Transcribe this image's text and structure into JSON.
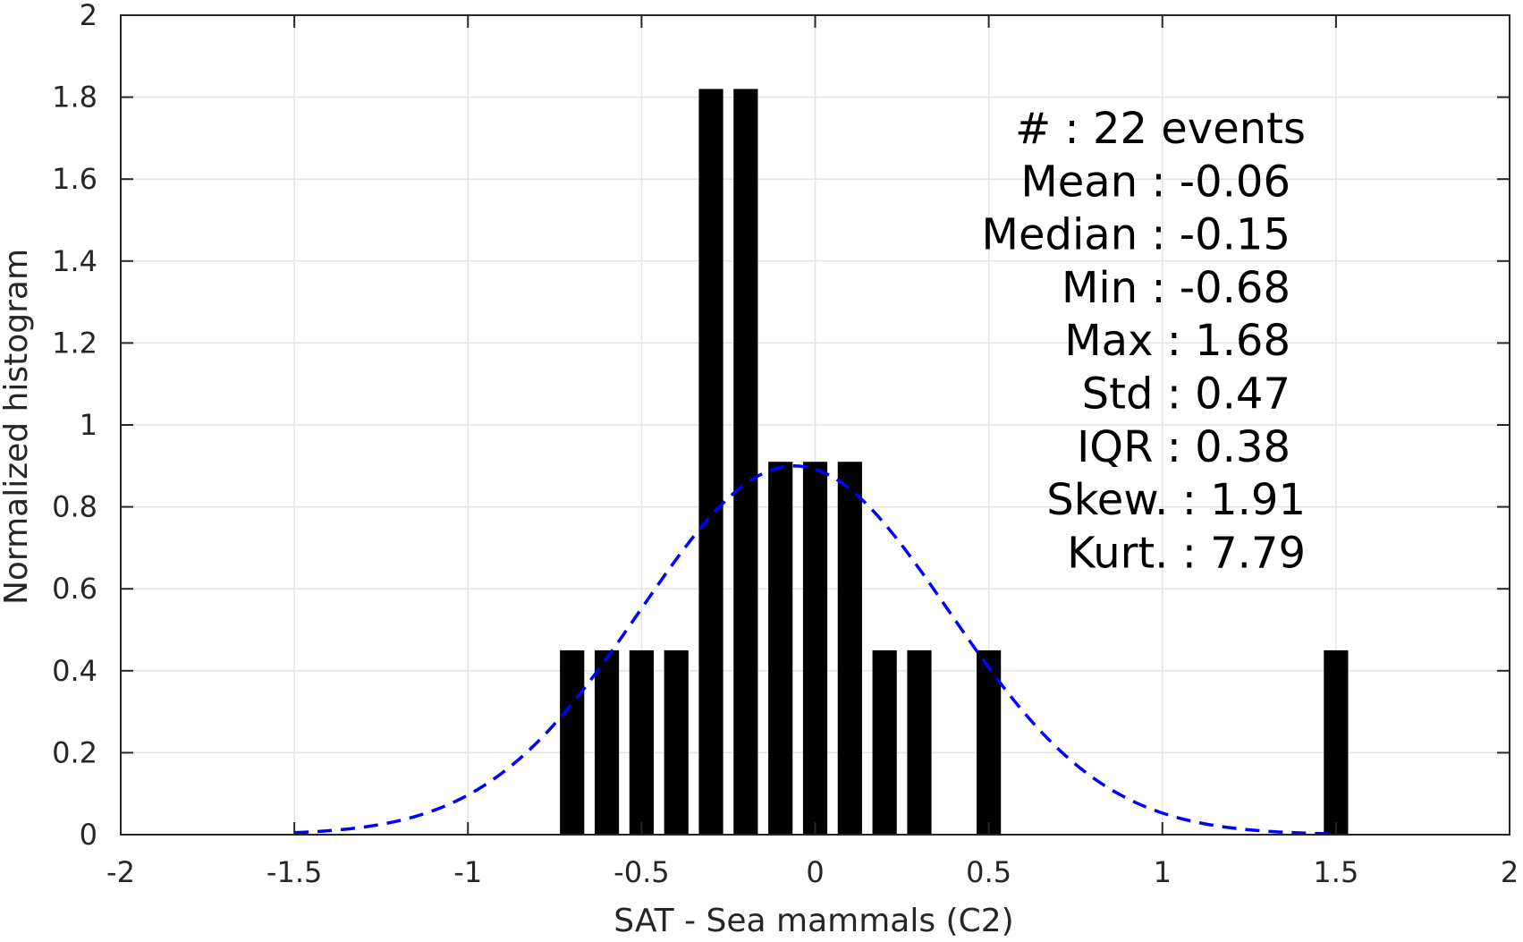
{
  "chart_data": {
    "type": "bar",
    "xlabel": "SAT - Sea mammals (C2)",
    "ylabel": "Normalized histogram",
    "xlim": [
      -2,
      2
    ],
    "ylim": [
      0,
      2
    ],
    "x_ticks": [
      -2,
      -1.5,
      -1,
      -0.5,
      0,
      0.5,
      1,
      1.5,
      2
    ],
    "x_tick_labels": [
      "-2",
      "-1.5",
      "-1",
      "-0.5",
      "0",
      "0.5",
      "1",
      "1.5",
      "2"
    ],
    "y_ticks": [
      0,
      0.2,
      0.4,
      0.6,
      0.8,
      1,
      1.2,
      1.4,
      1.6,
      1.8,
      2
    ],
    "y_tick_labels": [
      "0",
      "0.2",
      "0.4",
      "0.6",
      "0.8",
      "1",
      "1.2",
      "1.4",
      "1.6",
      "1.8",
      "2"
    ],
    "grid": true,
    "bar_width": 0.07,
    "bars": [
      {
        "x": -0.7,
        "y": 0.45
      },
      {
        "x": -0.6,
        "y": 0.45
      },
      {
        "x": -0.5,
        "y": 0.45
      },
      {
        "x": -0.4,
        "y": 0.45
      },
      {
        "x": -0.3,
        "y": 1.82
      },
      {
        "x": -0.2,
        "y": 1.82
      },
      {
        "x": -0.1,
        "y": 0.91
      },
      {
        "x": 0.0,
        "y": 0.91
      },
      {
        "x": 0.1,
        "y": 0.91
      },
      {
        "x": 0.2,
        "y": 0.45
      },
      {
        "x": 0.3,
        "y": 0.45
      },
      {
        "x": 0.5,
        "y": 0.45
      },
      {
        "x": 1.5,
        "y": 0.45
      }
    ],
    "fit_curve": {
      "style": "dashed",
      "color": "#0000ff",
      "mean": -0.06,
      "std": 0.445,
      "peak": 0.9,
      "x_range": [
        -1.5,
        1.5
      ]
    },
    "stats_lines": [
      "#  : 22 events",
      "Mean : -0.06",
      "Median : -0.15",
      "Min : -0.68",
      "Max : 1.68",
      "Std : 0.47",
      "IQR : 0.38",
      "Skew. : 1.91",
      "Kurt. : 7.79"
    ]
  }
}
